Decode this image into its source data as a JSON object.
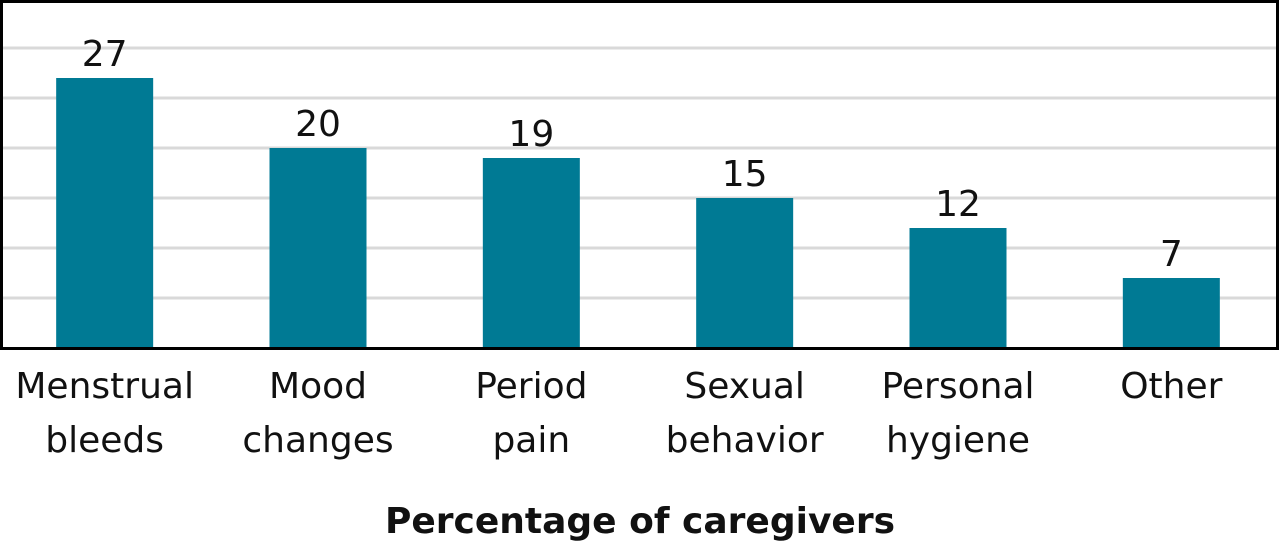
{
  "chart_data": {
    "type": "bar",
    "title": "",
    "xlabel": "Percentage of caregivers",
    "ylabel": "",
    "categories": [
      [
        "Menstrual",
        "bleeds"
      ],
      [
        "Mood",
        "changes"
      ],
      [
        "Period",
        "pain"
      ],
      [
        "Sexual",
        "behavior"
      ],
      [
        "Personal",
        "hygiene"
      ],
      [
        "Other"
      ]
    ],
    "values": [
      27,
      20,
      19,
      15,
      12,
      7
    ],
    "ylim": [
      0,
      35
    ],
    "gridlines": [
      0,
      5,
      10,
      15,
      20,
      25,
      30
    ],
    "grid": true,
    "legend": "none",
    "bar_color": "#007A94",
    "grid_color": "#D9D9D9",
    "frame_color": "#000000"
  }
}
